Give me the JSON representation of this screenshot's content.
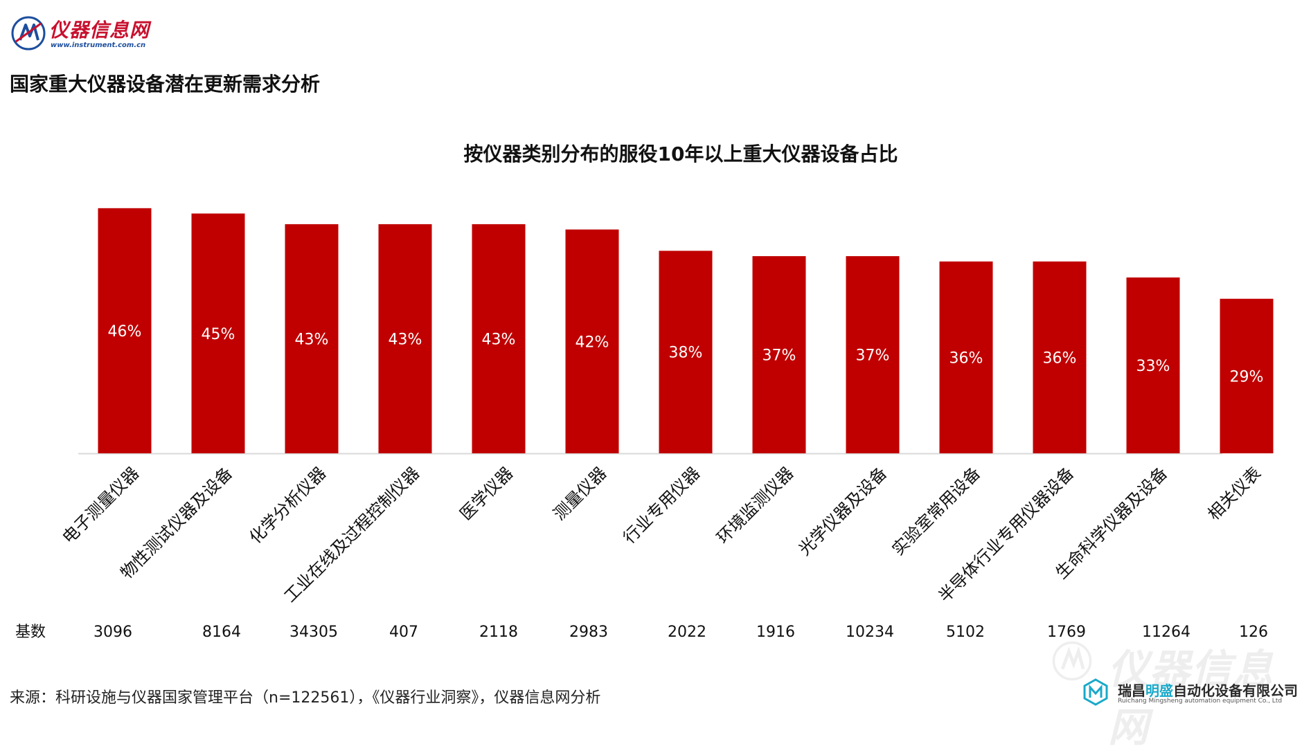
{
  "logo": {
    "brand": "仪器信息网",
    "url": "www.instrument.com.cn"
  },
  "page_title": "国家重大仪器设备潜在更新需求分析",
  "base_label": "基数",
  "source_text": "来源：科研设施与仪器国家管理平台（n=122561），《仪器行业洞察》，仪器信息网分析",
  "watermark": {
    "text": "仪器信息网"
  },
  "company": {
    "name_pre": "瑞昌",
    "name_hl": "明盛",
    "name_post": "自动化设备有限公司",
    "sub": "Ruichang Mingsheng automation equipment Co., Ltd",
    "accent": "#19a9c9"
  },
  "colors": {
    "bar": "#c00000",
    "label": "#ffffff",
    "axis": "#d9d9d9"
  },
  "chart_data": {
    "type": "bar",
    "title": "按仪器类别分布的服役10年以上重大仪器设备占比",
    "xlabel": "",
    "ylabel": "",
    "ylim": [
      0,
      0.5
    ],
    "grid": false,
    "categories": [
      "电子测量仪器",
      "物性测试仪器及设备",
      "化学分析仪器",
      "工业在线及过程控制仪器",
      "医学仪器",
      "测量仪器",
      "行业专用仪器",
      "环境监测仪器",
      "光学仪器及设备",
      "实验室常用设备",
      "半导体行业专用仪器设备",
      "生命科学仪器及设备",
      "相关仪表"
    ],
    "values": [
      0.46,
      0.45,
      0.43,
      0.43,
      0.43,
      0.42,
      0.38,
      0.37,
      0.37,
      0.36,
      0.36,
      0.33,
      0.29
    ],
    "data_labels": [
      "46%",
      "45%",
      "43%",
      "43%",
      "43%",
      "42%",
      "38%",
      "37%",
      "37%",
      "36%",
      "36%",
      "33%",
      "29%"
    ],
    "base_counts": [
      "3096",
      "8164",
      "34305",
      "407",
      "2118",
      "2983",
      "2022",
      "1916",
      "10234",
      "5102",
      "1769",
      "11264",
      "126"
    ]
  }
}
